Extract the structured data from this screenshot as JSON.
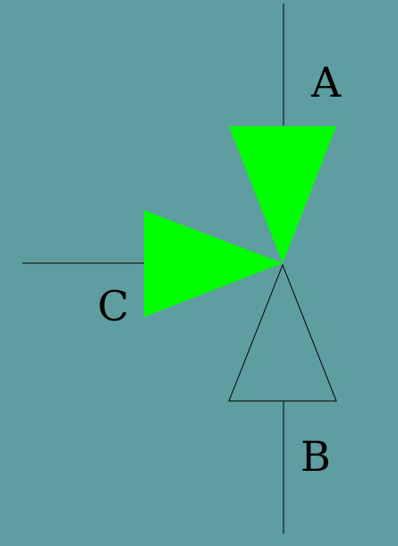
{
  "colors": {
    "background": "#5f9ea0",
    "active_fill": "#00ff00",
    "line": "#000000"
  },
  "diagram": {
    "ports": {
      "A": {
        "label": "A",
        "state": "open"
      },
      "B": {
        "label": "B",
        "state": "closed"
      },
      "C": {
        "label": "C",
        "state": "open"
      }
    }
  }
}
